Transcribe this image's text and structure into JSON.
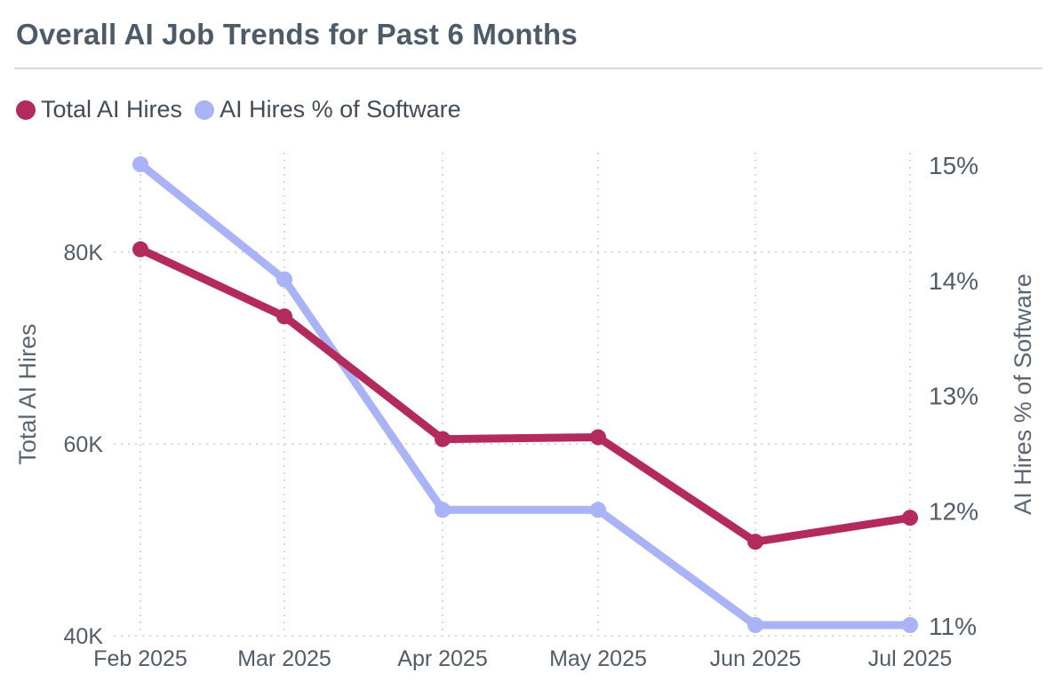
{
  "title": "Overall AI Job Trends for Past 6 Months",
  "legend": [
    {
      "label": "Total AI Hires",
      "color": "#b22b5c"
    },
    {
      "label": "AI Hires % of Software",
      "color": "#a9b3f5"
    }
  ],
  "chart_data": {
    "type": "line",
    "title": "Overall AI Job Trends for Past 6 Months",
    "categories": [
      "Feb 2025",
      "Mar 2025",
      "Apr 2025",
      "May 2025",
      "Jun 2025",
      "Jul 2025"
    ],
    "series": [
      {
        "name": "Total AI Hires",
        "axis": "left",
        "color": "#b22b5c",
        "values": [
          80300,
          73300,
          60500,
          60700,
          49800,
          52300
        ]
      },
      {
        "name": "AI Hires % of Software",
        "axis": "right",
        "color": "#a9b3f5",
        "values": [
          15,
          14,
          12,
          12,
          11,
          11
        ]
      }
    ],
    "yleft": {
      "label": "Total AI Hires",
      "ticks": [
        40000,
        60000,
        80000
      ],
      "tick_labels": [
        "40K",
        "60K",
        "80K"
      ],
      "range": [
        40000,
        89000
      ]
    },
    "yright": {
      "label": "AI Hires % of Software",
      "ticks": [
        11,
        12,
        13,
        14,
        15
      ],
      "tick_labels": [
        "11%",
        "12%",
        "13%",
        "14%",
        "15%"
      ],
      "range": [
        11,
        15
      ]
    },
    "grid": true,
    "legend_position": "top-left"
  }
}
